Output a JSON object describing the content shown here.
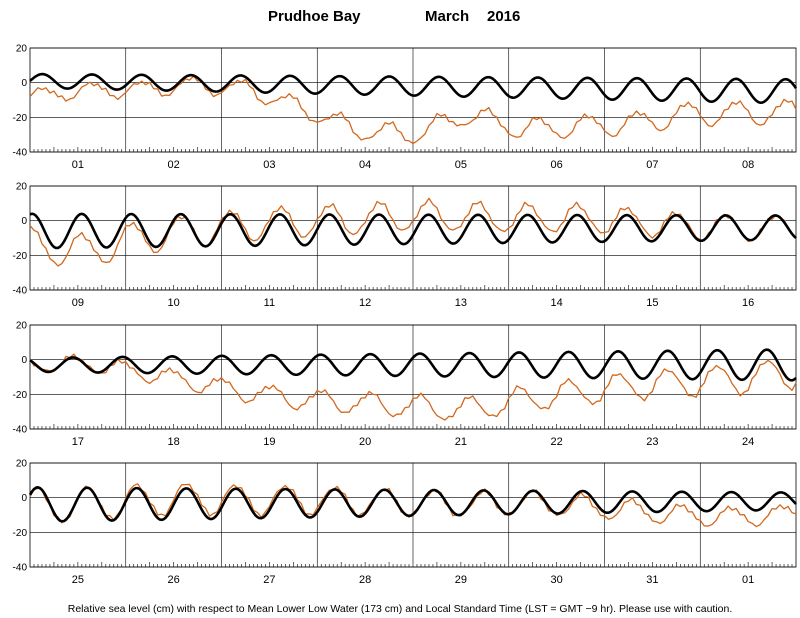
{
  "title_station": "Prudhoe Bay",
  "title_month": "March",
  "title_year": "2016",
  "footnote": "Relative sea level (cm) with respect to Mean Lower Low Water (173 cm) and Local Standard Time (LST = GMT −9 hr). Please use with caution.",
  "colors": {
    "predicted": "#000000",
    "observed": "#d2691e",
    "grid": "#000000"
  },
  "chart_data": [
    {
      "type": "line",
      "days": [
        "01",
        "02",
        "03",
        "04",
        "05",
        "06",
        "07",
        "08"
      ],
      "ylim": [
        -40,
        20
      ],
      "yticks": [
        20,
        0,
        -20,
        -40
      ],
      "series": [
        {
          "key": "predicted",
          "tide": {
            "amp0": 4,
            "amp1": 7,
            "mean0": 1,
            "mean1": -5,
            "phase": 0.0
          }
        },
        {
          "key": "observed",
          "offsets": [
            -9,
            -5,
            -4,
            -1,
            -3,
            -14,
            -26,
            -28,
            -16,
            -24,
            -22,
            -20,
            -14,
            -13,
            -12
          ]
        }
      ]
    },
    {
      "type": "line",
      "days": [
        "09",
        "10",
        "11",
        "12",
        "13",
        "14",
        "15",
        "16"
      ],
      "ylim": [
        -40,
        20
      ],
      "yticks": [
        20,
        0,
        -20,
        -40
      ],
      "series": [
        {
          "key": "predicted",
          "tide": {
            "amp0": 10,
            "amp1": 7,
            "mean0": -6,
            "mean1": -4,
            "phase": 1.3
          }
        },
        {
          "key": "observed",
          "offsets": [
            -8,
            -12,
            -4,
            0,
            3,
            5,
            6,
            8,
            7,
            6,
            6,
            4,
            1,
            0,
            0
          ]
        }
      ]
    },
    {
      "type": "line",
      "days": [
        "17",
        "18",
        "19",
        "20",
        "21",
        "22",
        "23",
        "24"
      ],
      "ylim": [
        -40,
        20
      ],
      "yticks": [
        20,
        0,
        -20,
        -40
      ],
      "series": [
        {
          "key": "predicted",
          "tide": {
            "amp0": 4,
            "amp1": 9,
            "mean0": -3,
            "mean1": -3,
            "phase": 2.4
          }
        },
        {
          "key": "observed",
          "offsets": [
            0,
            1,
            -4,
            -10,
            -16,
            -20,
            -22,
            -24,
            -26,
            -20,
            -16,
            -12,
            -10,
            -8,
            -4
          ]
        }
      ]
    },
    {
      "type": "line",
      "days": [
        "25",
        "26",
        "27",
        "28",
        "29",
        "30",
        "31",
        "01"
      ],
      "ylim": [
        -40,
        20
      ],
      "yticks": [
        20,
        0,
        -20,
        -40
      ],
      "series": [
        {
          "key": "predicted",
          "tide": {
            "amp0": 10,
            "amp1": 5,
            "mean0": -4,
            "mean1": -2,
            "phase": 0.6
          }
        },
        {
          "key": "observed",
          "offsets": [
            -1,
            0,
            2,
            3,
            2,
            2,
            1,
            0,
            -1,
            0,
            -2,
            -5,
            -8,
            -9,
            -7
          ]
        }
      ]
    }
  ]
}
